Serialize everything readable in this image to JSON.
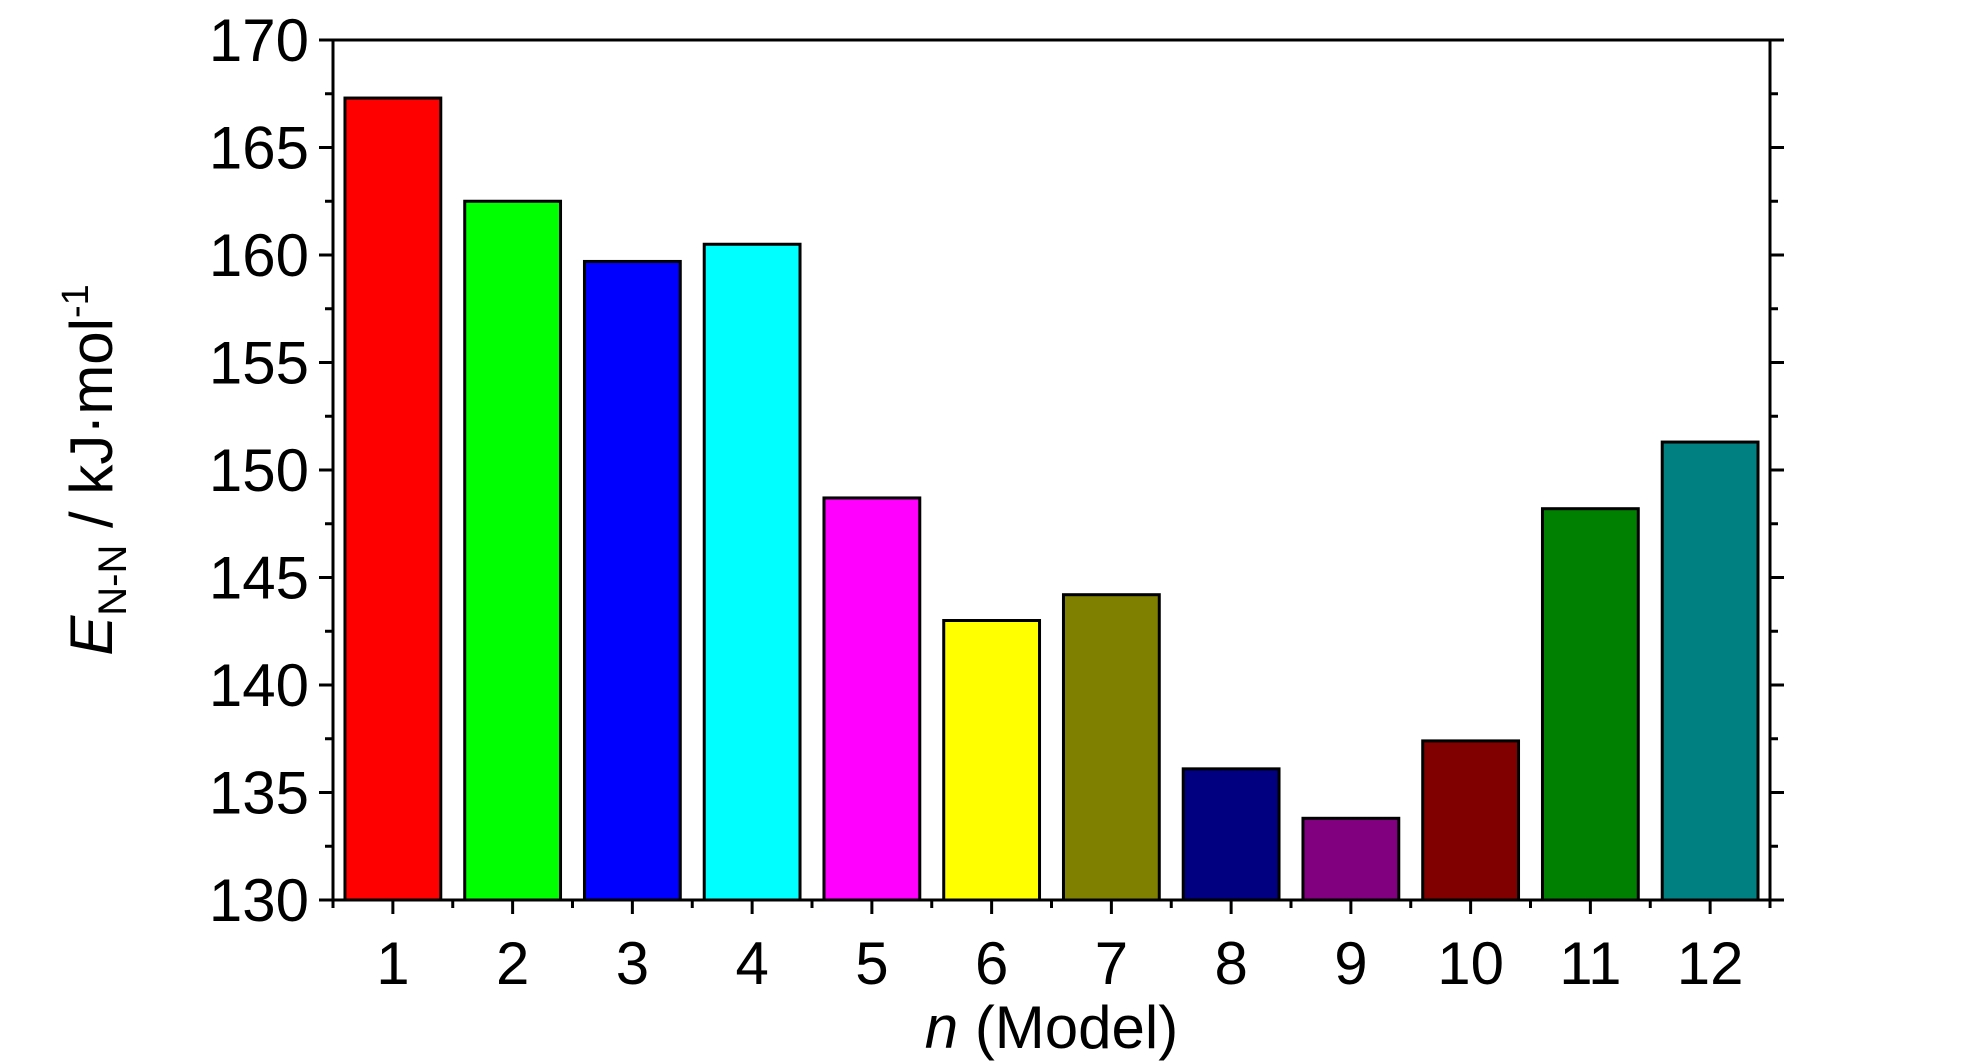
{
  "chart_data": {
    "type": "bar",
    "categories": [
      "1",
      "2",
      "3",
      "4",
      "5",
      "6",
      "7",
      "8",
      "9",
      "10",
      "11",
      "12"
    ],
    "values": [
      167.3,
      162.5,
      159.7,
      160.5,
      148.7,
      143.0,
      144.2,
      136.1,
      133.8,
      137.4,
      148.2,
      151.3
    ],
    "colors": [
      "#ff0000",
      "#00ff00",
      "#0000ff",
      "#00ffff",
      "#ff00ff",
      "#ffff00",
      "#808000",
      "#000080",
      "#800080",
      "#800000",
      "#008000",
      "#008080"
    ],
    "ylim": [
      130,
      170
    ],
    "yticks": [
      "130",
      "135",
      "140",
      "145",
      "150",
      "155",
      "160",
      "165",
      "170"
    ],
    "xlabel": {
      "symbol": "n",
      "text": " (Model)"
    },
    "ylabel": {
      "symbol": "E",
      "subscript": "N-N",
      "text": " / kJ·mol",
      "superscript": "-1"
    },
    "grid": false,
    "legend": "none"
  }
}
